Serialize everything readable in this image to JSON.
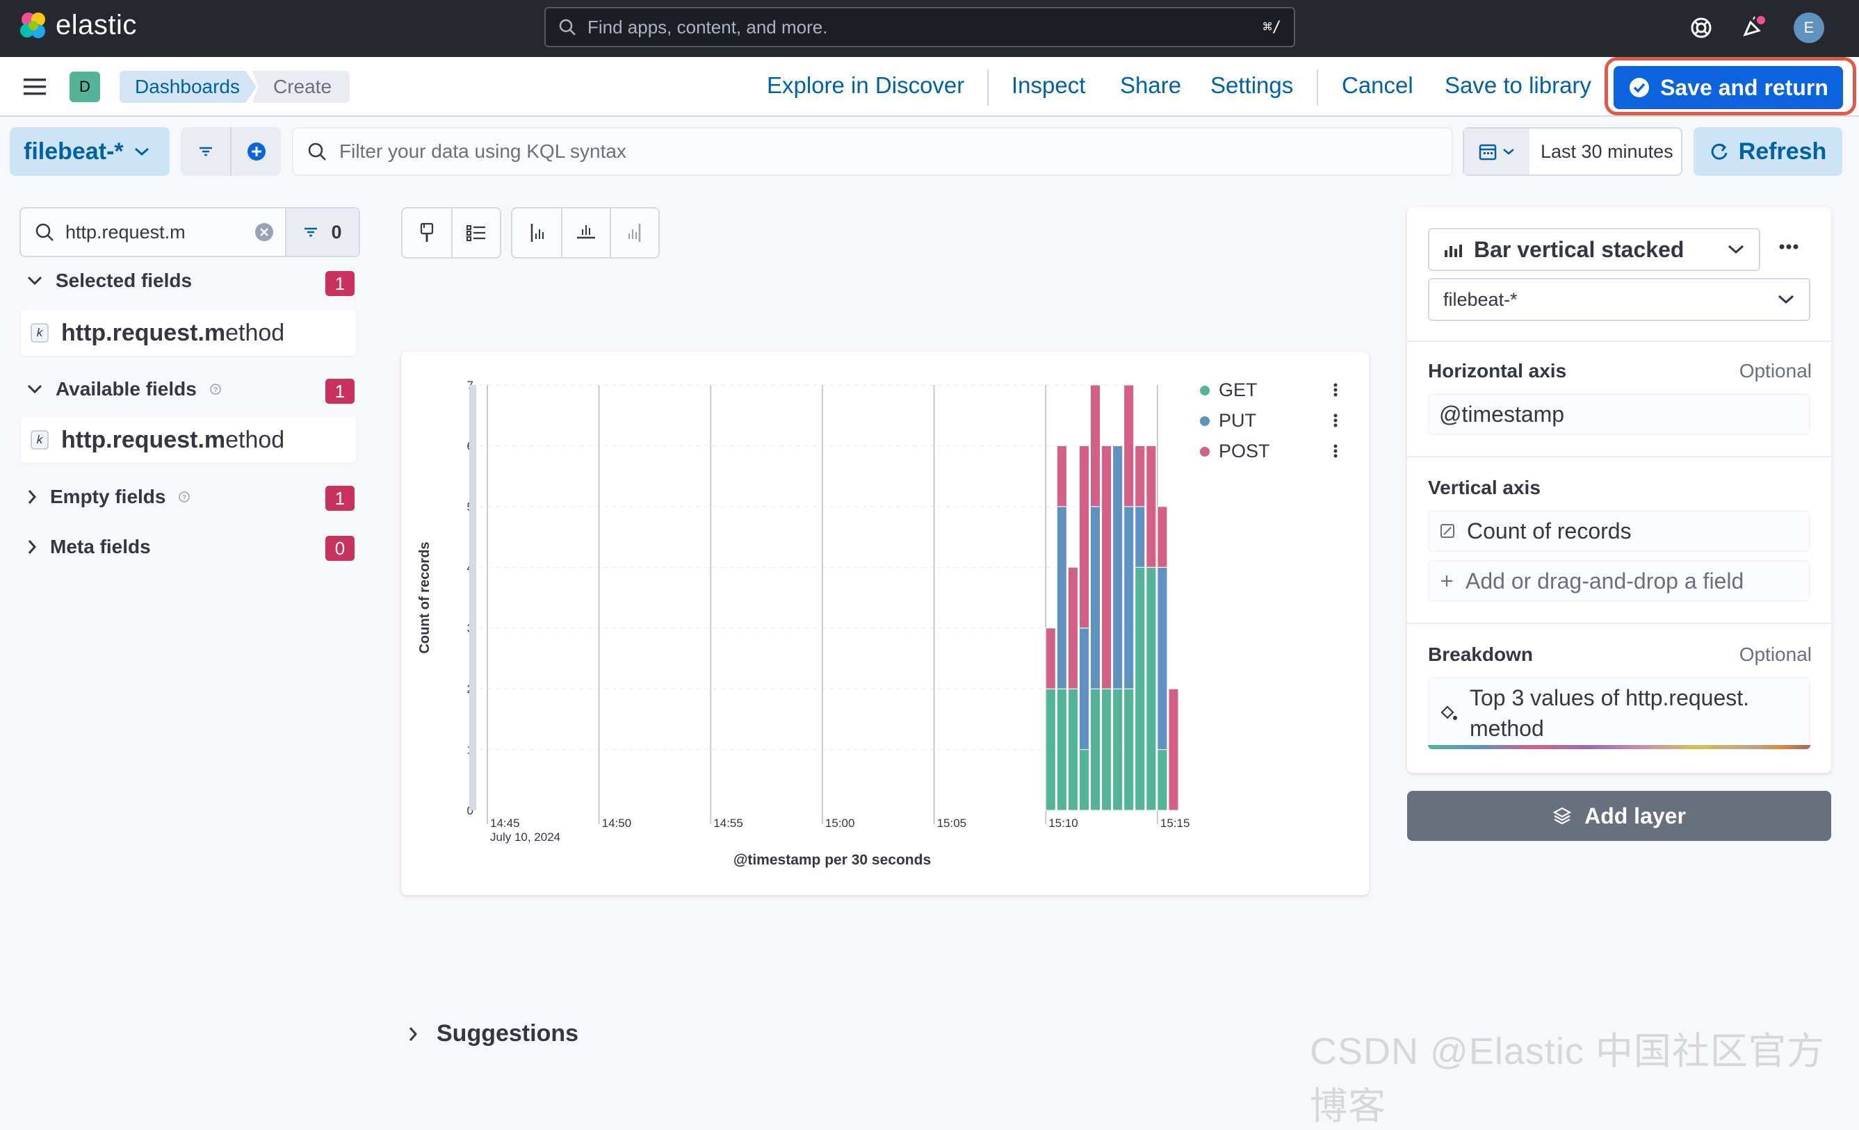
{
  "topbar": {
    "brand": "elastic",
    "search_placeholder": "Find apps, content, and more.",
    "search_shortcut": "⌘/",
    "avatar": "E"
  },
  "header": {
    "space_badge": "D",
    "breadcrumbs": [
      "Dashboards",
      "Create"
    ],
    "links": {
      "explore": "Explore in Discover",
      "inspect": "Inspect",
      "share": "Share",
      "settings": "Settings",
      "cancel": "Cancel",
      "save_library": "Save to library",
      "save_return": "Save and return"
    }
  },
  "filterbar": {
    "data_view": "filebeat-*",
    "kql_placeholder": "Filter your data using KQL syntax",
    "time_range": "Last 30 minutes",
    "refresh": "Refresh"
  },
  "sidebar": {
    "search_value": "http.request.m",
    "filter_count": "0",
    "sections": [
      {
        "label": "Selected fields",
        "count": "1"
      },
      {
        "label": "Available fields",
        "count": "1"
      },
      {
        "label": "Empty fields",
        "count": "1"
      },
      {
        "label": "Meta fields",
        "count": "0"
      }
    ],
    "field_match": "http.request.m",
    "field_rest": "ethod"
  },
  "chart_data": {
    "type": "bar",
    "stacked": true,
    "ylabel": "Count of records",
    "xlabel": "@timestamp per 30 seconds",
    "ylim": [
      0,
      7
    ],
    "yticks": [
      "0",
      "1",
      "2",
      "3",
      "4",
      "5",
      "6",
      "7"
    ],
    "xticks": [
      "14:45",
      "14:50",
      "14:55",
      "15:00",
      "15:05",
      "15:10",
      "15:15"
    ],
    "x_sublabel": "July 10, 2024",
    "categories": [
      "15:10:00",
      "15:10:30",
      "15:11:00",
      "15:11:30",
      "15:12:00",
      "15:12:30",
      "15:13:00",
      "15:13:30",
      "15:14:00",
      "15:14:30",
      "15:15:00",
      "15:15:30"
    ],
    "series": [
      {
        "name": "GET",
        "color": "#54b399",
        "values": [
          2,
          2,
          2,
          1,
          2,
          2,
          2,
          2,
          4,
          4,
          1,
          0
        ]
      },
      {
        "name": "PUT",
        "color": "#6092c0",
        "values": [
          0,
          3,
          0,
          2,
          3,
          0,
          4,
          3,
          1,
          0,
          3,
          0
        ]
      },
      {
        "name": "POST",
        "color": "#d36086",
        "values": [
          1,
          1,
          2,
          3,
          2,
          4,
          0,
          2,
          1,
          2,
          1,
          2
        ]
      }
    ]
  },
  "suggestions": "Suggestions",
  "config": {
    "vis_type": "Bar vertical stacked",
    "data_view": "filebeat-*",
    "horizontal_axis": {
      "label": "Horizontal axis",
      "optional": "Optional",
      "value": "@timestamp"
    },
    "vertical_axis": {
      "label": "Vertical axis",
      "value": "Count of records",
      "add": "Add or drag-and-drop a field"
    },
    "breakdown": {
      "label": "Breakdown",
      "optional": "Optional",
      "value_line1": "Top 3 values of http.request.",
      "value_line2": "method"
    },
    "add_layer": "Add layer"
  },
  "watermark": "CSDN @Elastic 中国社区官方博客"
}
